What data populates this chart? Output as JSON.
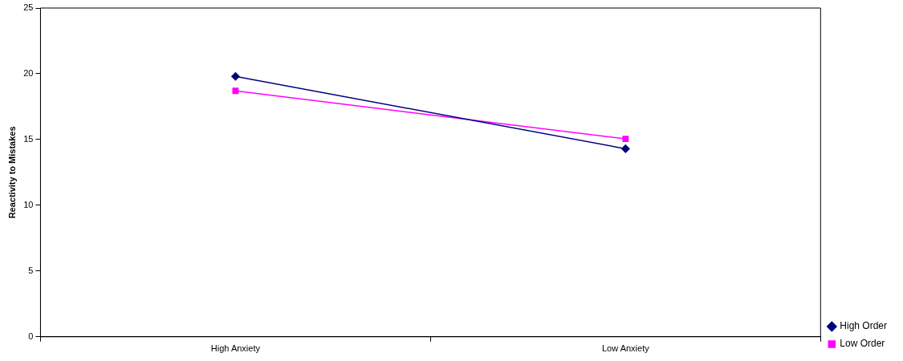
{
  "chart_data": {
    "type": "line",
    "ylabel": "Reactivity to Mistakes",
    "categories": [
      "High Anxiety",
      "Low Anxiety"
    ],
    "series": [
      {
        "name": "High Order",
        "color": "#000080",
        "marker": "diamond",
        "values": [
          19.8,
          14.3
        ]
      },
      {
        "name": "Low Order",
        "color": "#ff00ff",
        "marker": "square",
        "values": [
          18.7,
          15.05
        ]
      }
    ],
    "ylim": [
      0,
      25
    ],
    "yticks": [
      0,
      5,
      10,
      15,
      20,
      25
    ],
    "grid": false,
    "legend": "right"
  }
}
